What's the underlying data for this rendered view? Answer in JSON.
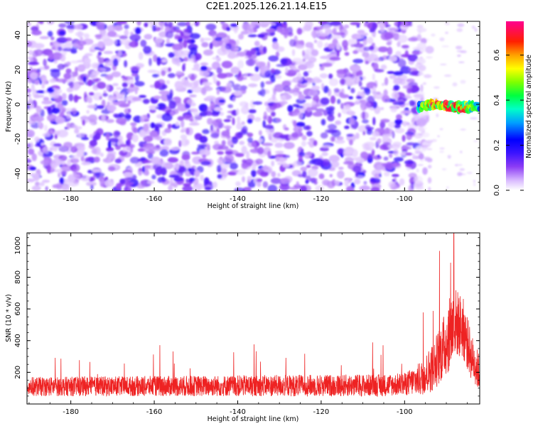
{
  "title": "C2E1.2025.126.21.14.E15",
  "chart_data": [
    {
      "type": "heatmap",
      "xlabel": "Height of straight line (km)",
      "ylabel": "Frequency (Hz)",
      "xlim": [
        -190.5,
        -82
      ],
      "ylim": [
        -50,
        48
      ],
      "xticks": [
        -180,
        -160,
        -140,
        -120,
        -100
      ],
      "yticks": [
        -40,
        -20,
        0,
        20,
        40
      ],
      "colorbar": {
        "label": "Normalized spectral amplitude",
        "range": [
          0.0,
          0.75
        ],
        "ticks": [
          0.0,
          0.2,
          0.4,
          0.6
        ],
        "colormap": [
          "#ffffff",
          "#8c3cf5",
          "#0000ff",
          "#00b4ff",
          "#00ff90",
          "#40ff00",
          "#ffff00",
          "#ff8000",
          "#ff0000",
          "#ff00a0"
        ]
      },
      "noise_region": {
        "x": [
          -190.5,
          -97
        ],
        "y": [
          -50,
          48
        ],
        "typical_amplitude": [
          0.03,
          0.15
        ]
      },
      "signal_band": {
        "x": [
          -96.5,
          -82
        ],
        "y_center": -1,
        "y_halfwidth": 3,
        "peak_amplitude": 0.65,
        "peak_x": -88
      }
    },
    {
      "type": "line",
      "xlabel": "Height of straight line (km)",
      "ylabel": "SNR (10 * v/v)",
      "xlim": [
        -190.5,
        -82
      ],
      "ylim": [
        0,
        1080
      ],
      "xticks": [
        -180,
        -160,
        -140,
        -120,
        -100
      ],
      "yticks": [
        200,
        400,
        600,
        800,
        1000
      ],
      "series": [
        {
          "color": "#ee2222",
          "baseline": {
            "x": [
              -190.5,
              -105,
              -100,
              -96,
              -93,
              -90,
              -88,
              -86,
              -84,
              -82
            ],
            "y": [
              110,
              118,
              125,
              160,
              240,
              390,
              520,
              480,
              300,
              190
            ]
          },
          "noise_amplitude": {
            "x": [
              -190.5,
              -100,
              -96,
              -92,
              -89,
              -86,
              -83
            ],
            "y": [
              110,
              130,
              200,
              320,
              430,
              360,
              230
            ]
          },
          "peak": {
            "x": -88.2,
            "y": 1080
          }
        }
      ]
    }
  ]
}
